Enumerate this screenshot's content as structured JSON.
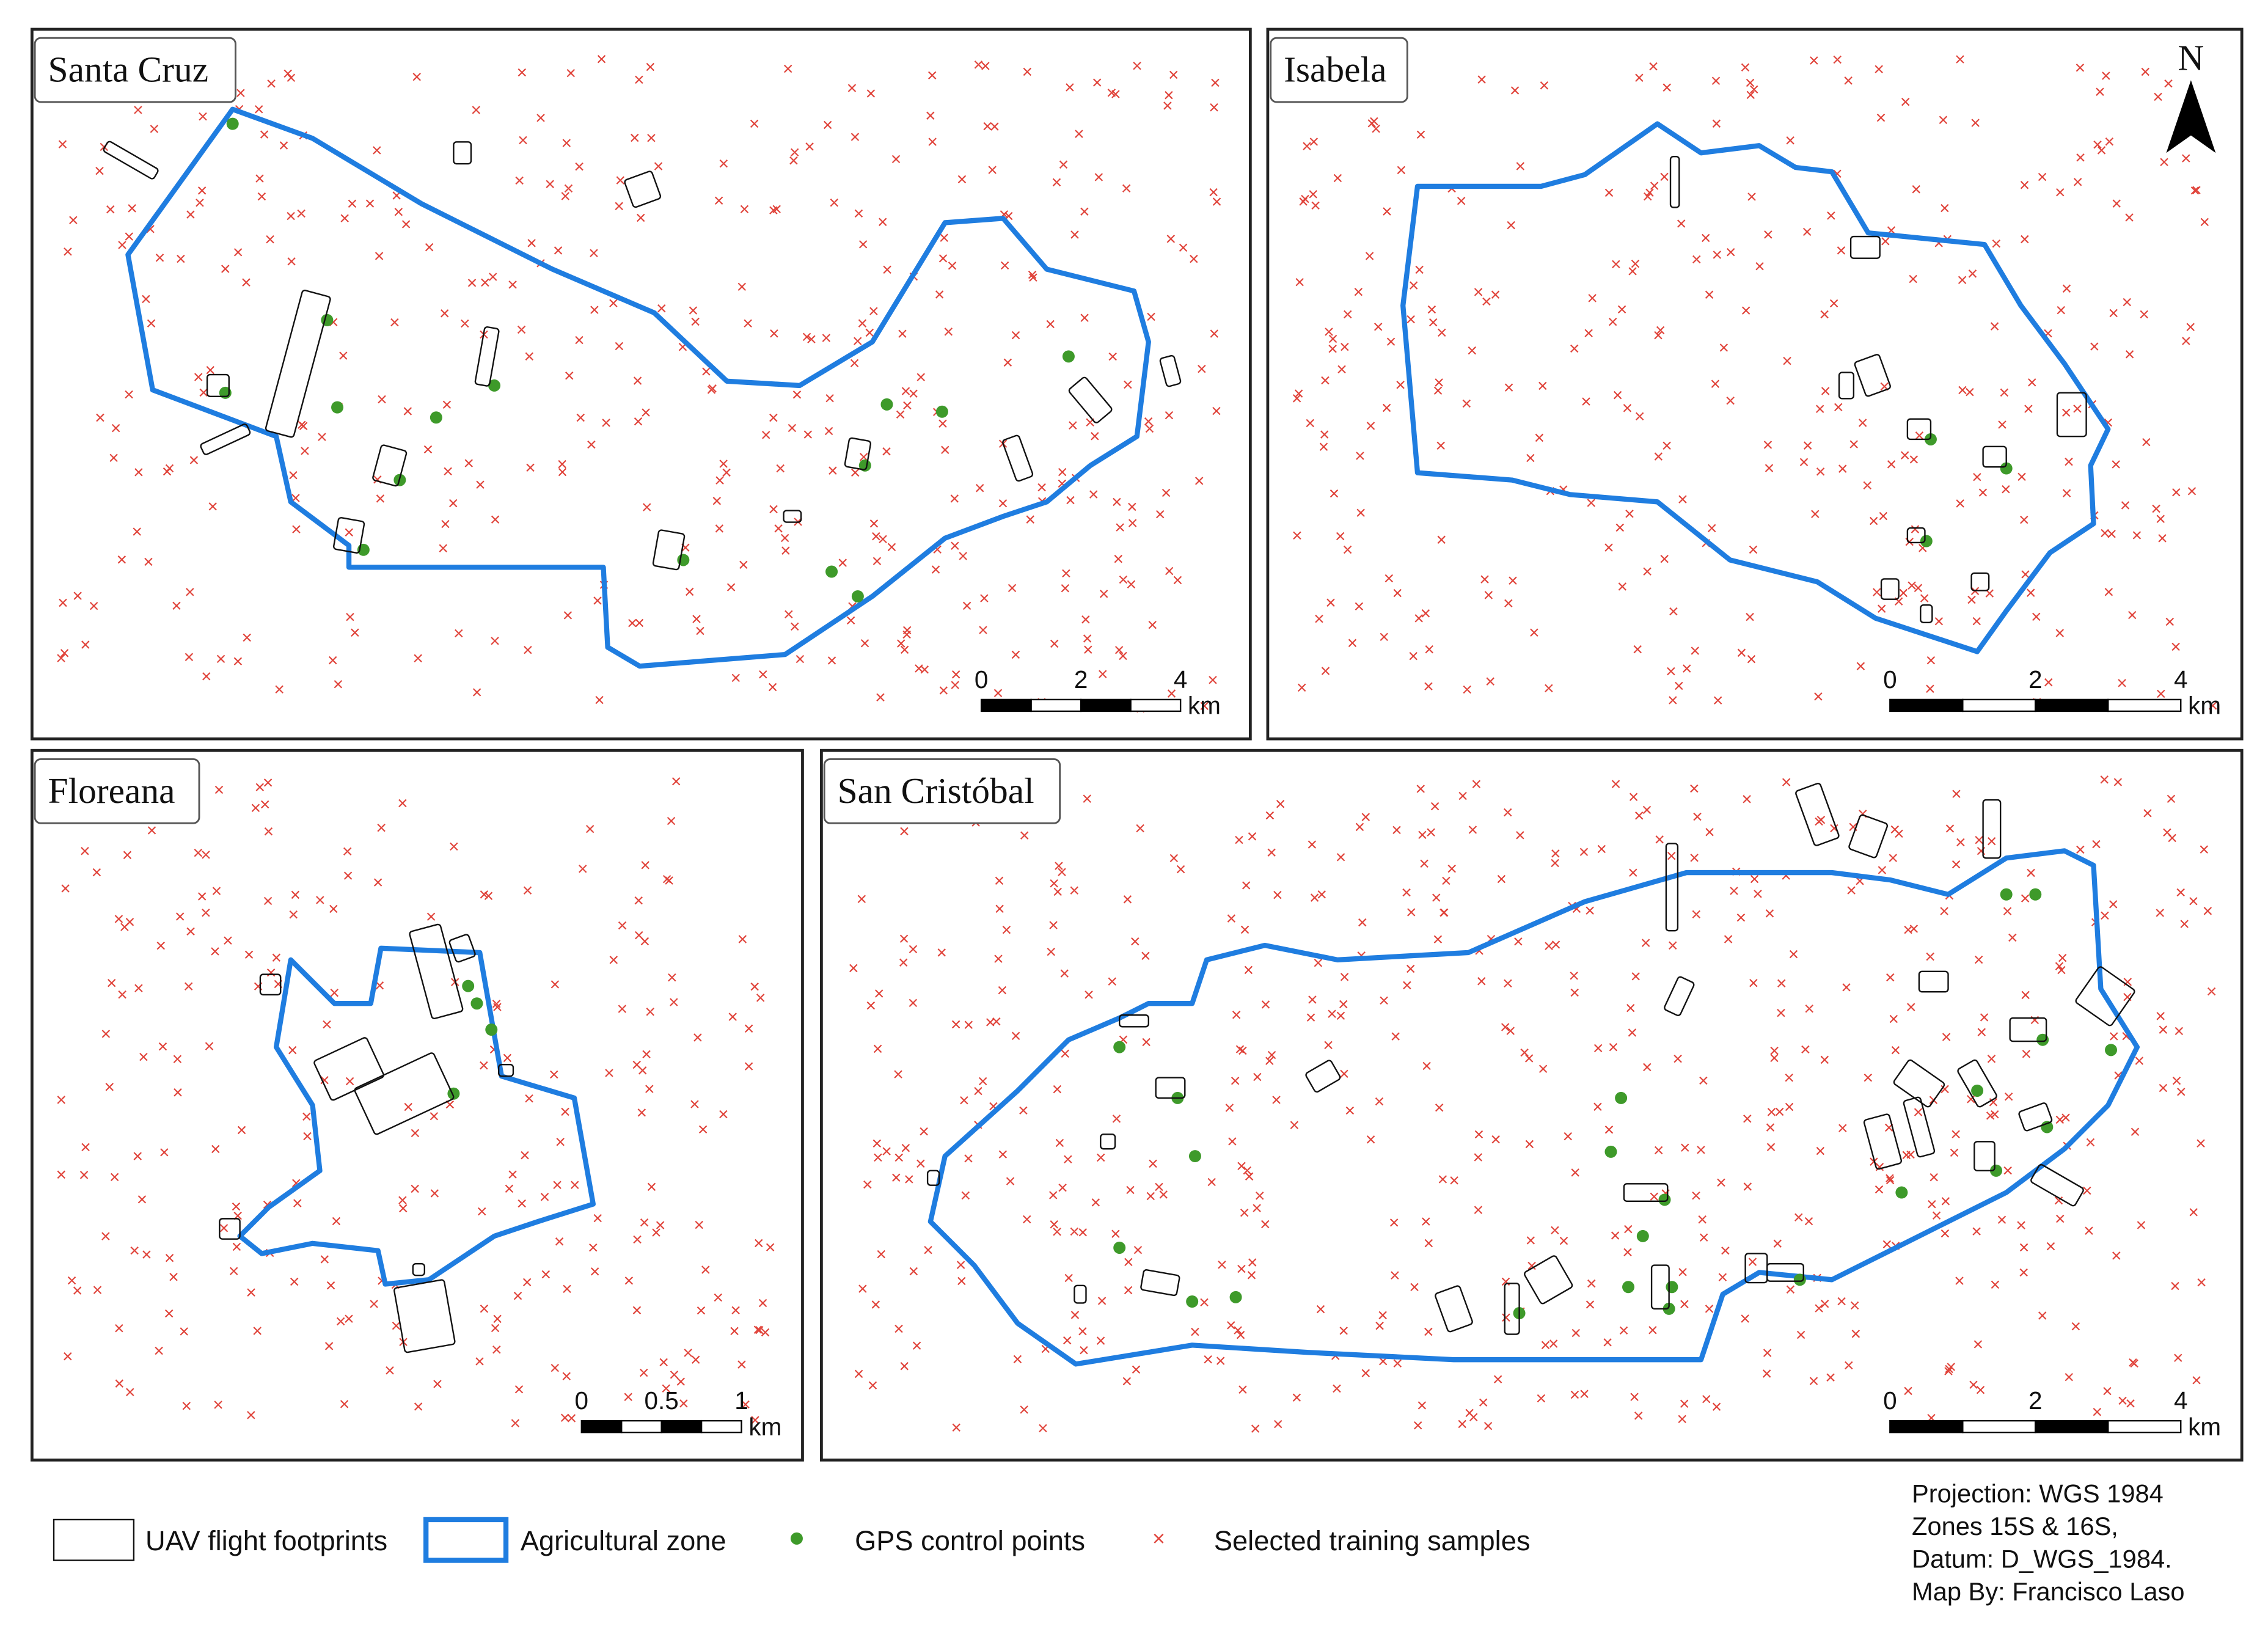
{
  "panels": [
    {
      "title": "Santa Cruz",
      "scale": {
        "labels": [
          "0",
          "2",
          "4"
        ],
        "unit": "km"
      }
    },
    {
      "title": "Isabela",
      "north": "N",
      "scale": {
        "labels": [
          "0",
          "2",
          "4"
        ],
        "unit": "km"
      }
    },
    {
      "title": "Floreana",
      "scale": {
        "labels": [
          "0",
          "0.5",
          "1"
        ],
        "unit": "km"
      }
    },
    {
      "title": "San Cristóbal",
      "scale": {
        "labels": [
          "0",
          "2",
          "4"
        ],
        "unit": "km"
      }
    }
  ],
  "legend": [
    "UAV flight footprints",
    "Agricultural zone",
    "GPS control points",
    "Selected training samples"
  ],
  "notes": [
    "Projection: WGS 1984",
    "Zones 15S & 16S,",
    "Datum: D_WGS_1984.",
    "Map By: Francisco Laso"
  ]
}
